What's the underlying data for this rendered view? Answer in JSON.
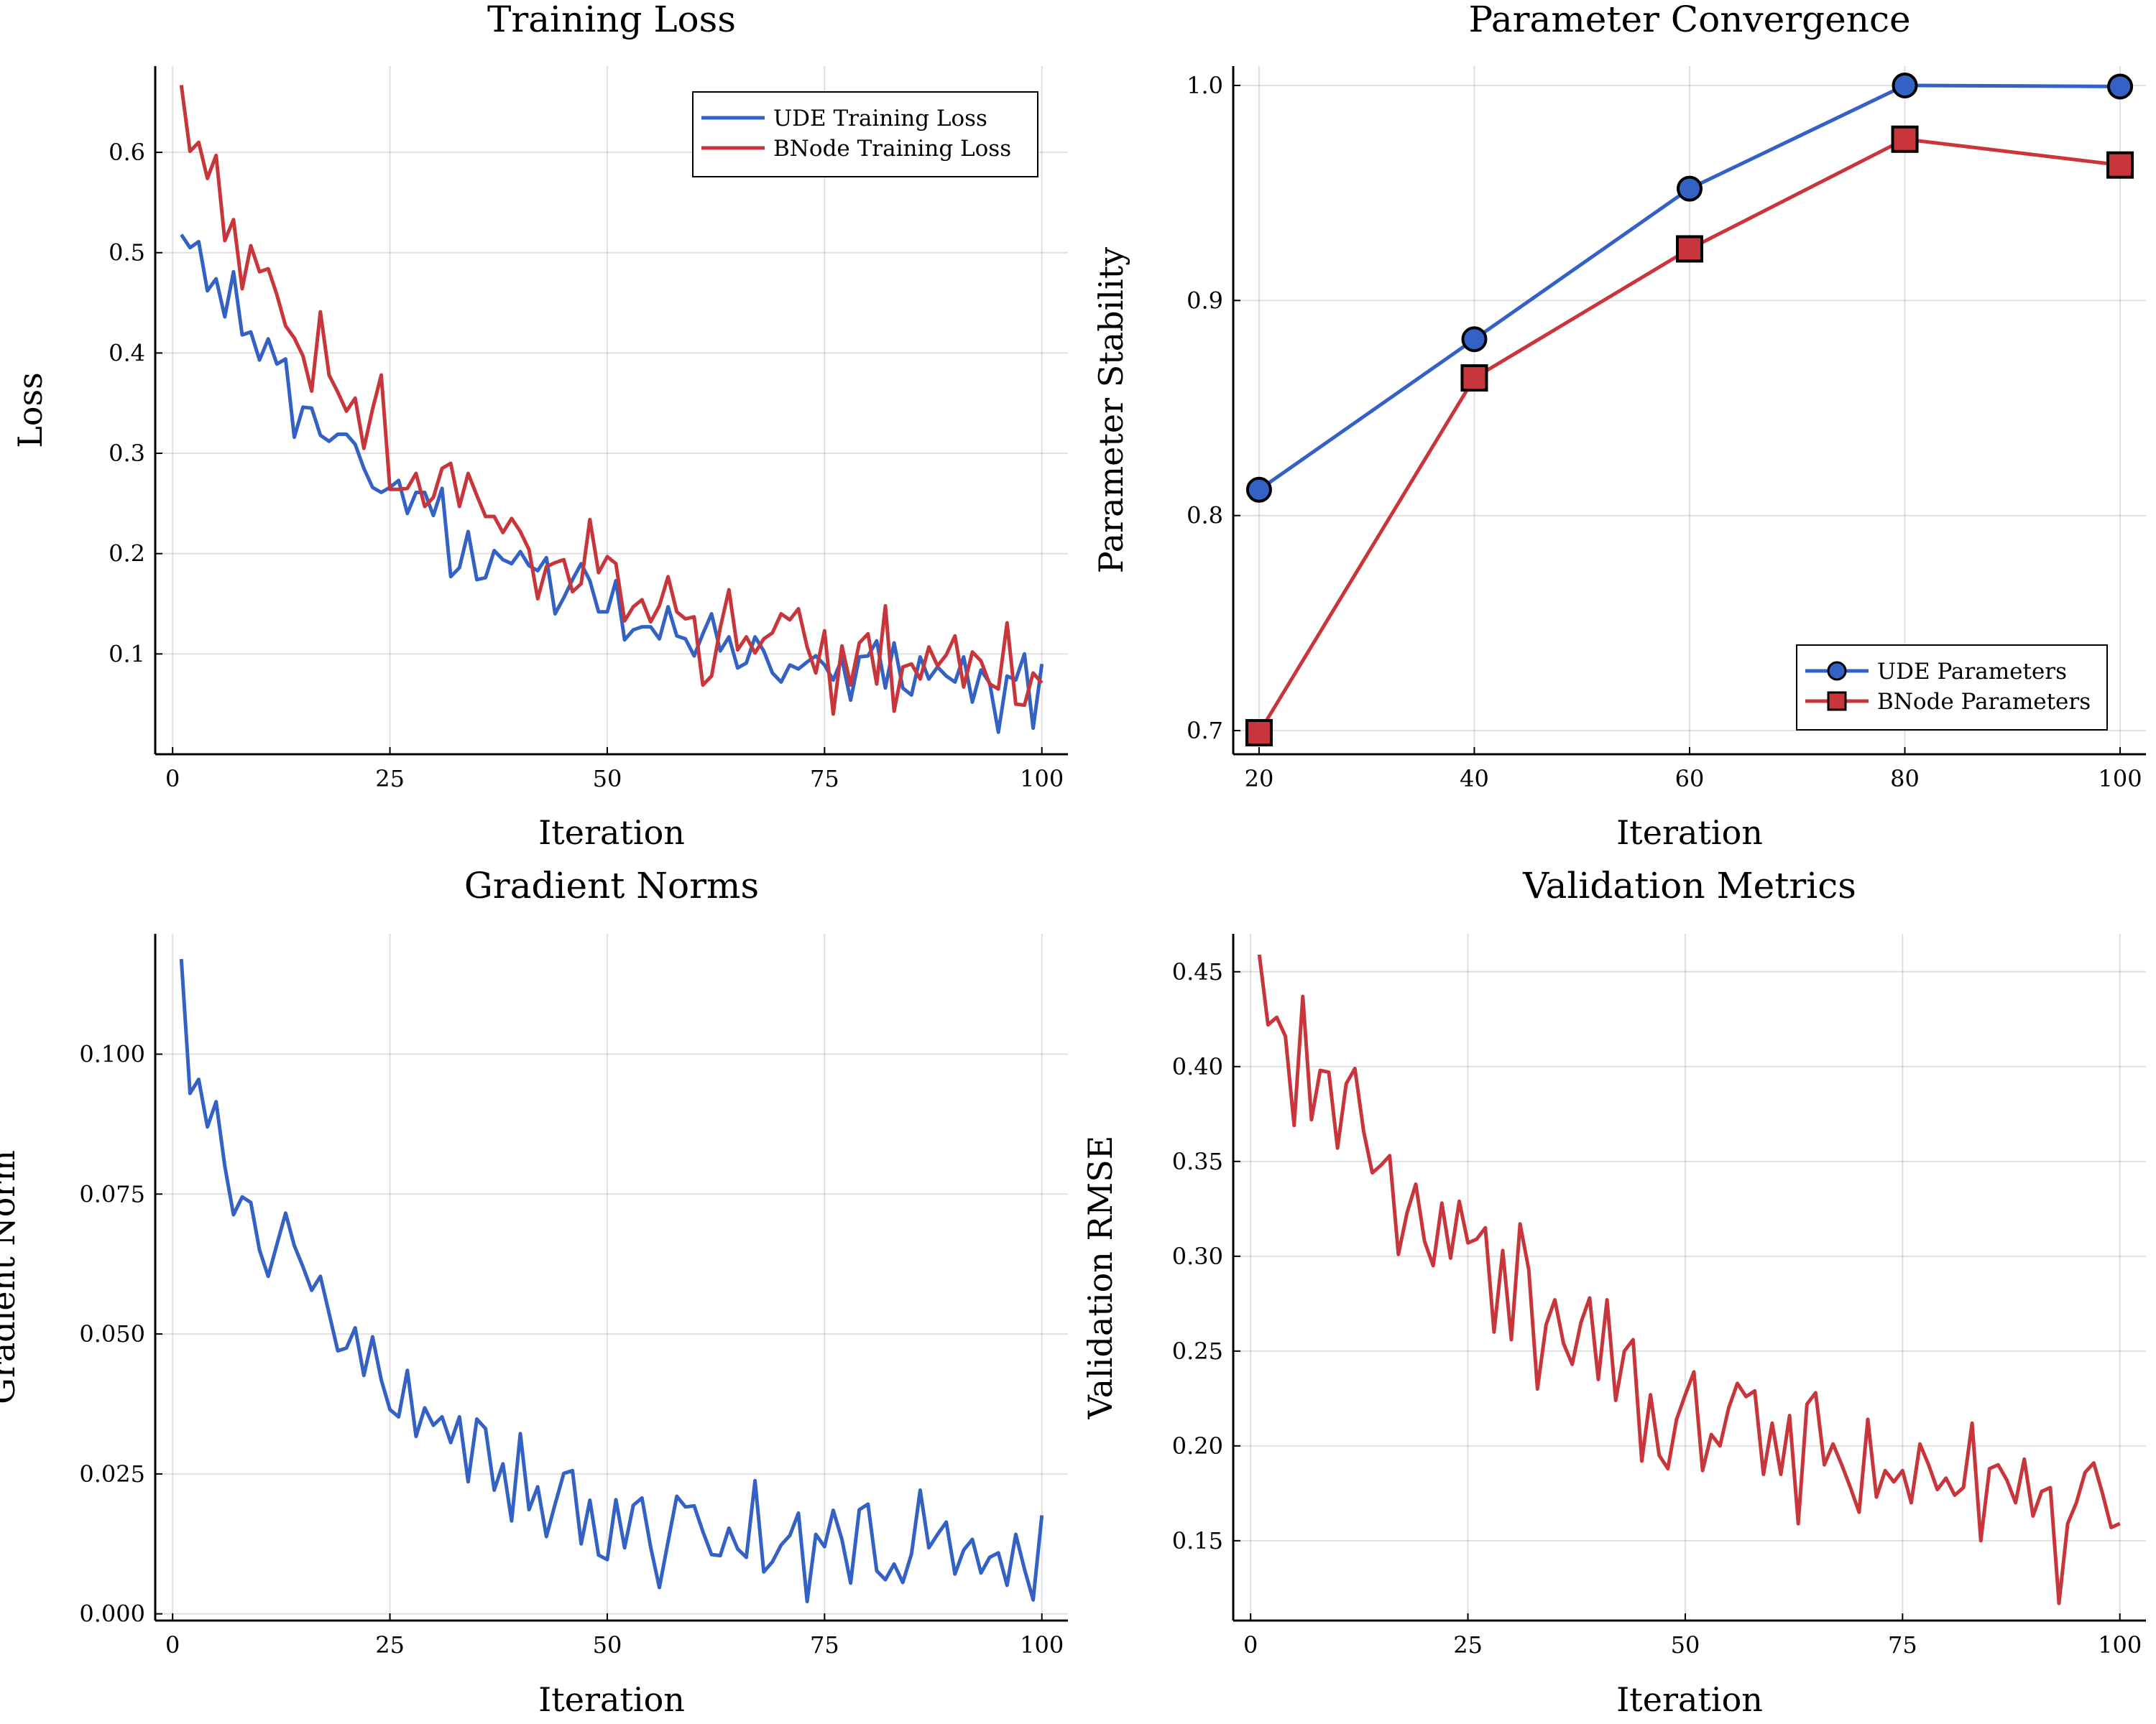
{
  "colors": {
    "blue": "#3361c4",
    "red": "#c8363b",
    "grid": "#dcdcdc",
    "axis": "#000000"
  },
  "chart_data": [
    {
      "id": "loss",
      "type": "line",
      "title": "Training Loss",
      "xlabel": "Iteration",
      "ylabel": "Loss",
      "xlim": [
        -2,
        103
      ],
      "ylim": [
        0.0,
        0.686
      ],
      "xticks": [
        0,
        25,
        50,
        75,
        100
      ],
      "xtick_labels": [
        "0",
        "25",
        "50",
        "75",
        "100"
      ],
      "yticks": [
        0.1,
        0.2,
        0.3,
        0.4,
        0.5,
        0.6
      ],
      "ytick_labels": [
        "0.1",
        "0.2",
        "0.3",
        "0.4",
        "0.5",
        "0.6"
      ],
      "grid": true,
      "legend": "top-right",
      "series": [
        {
          "name": "UDE Training Loss",
          "color": "#3361c4",
          "x": [
            1,
            2,
            3,
            4,
            5,
            6,
            7,
            8,
            9,
            10,
            11,
            12,
            13,
            14,
            15,
            16,
            17,
            18,
            19,
            20,
            21,
            22,
            23,
            24,
            25,
            26,
            27,
            28,
            29,
            30,
            31,
            32,
            33,
            34,
            35,
            36,
            37,
            38,
            39,
            40,
            41,
            42,
            43,
            44,
            45,
            46,
            47,
            48,
            49,
            50,
            51,
            52,
            53,
            54,
            55,
            56,
            57,
            58,
            59,
            60,
            61,
            62,
            63,
            64,
            65,
            66,
            67,
            68,
            69,
            70,
            71,
            72,
            73,
            74,
            75,
            76,
            77,
            78,
            79,
            80,
            81,
            82,
            83,
            84,
            85,
            86,
            87,
            88,
            89,
            90,
            91,
            92,
            93,
            94,
            95,
            96,
            97,
            98,
            99,
            100
          ],
          "y": [
            0.518,
            0.505,
            0.511,
            0.462,
            0.474,
            0.436,
            0.481,
            0.418,
            0.421,
            0.393,
            0.414,
            0.389,
            0.394,
            0.316,
            0.346,
            0.345,
            0.318,
            0.312,
            0.319,
            0.319,
            0.309,
            0.285,
            0.266,
            0.261,
            0.266,
            0.273,
            0.24,
            0.261,
            0.261,
            0.238,
            0.265,
            0.177,
            0.186,
            0.222,
            0.174,
            0.176,
            0.203,
            0.194,
            0.19,
            0.202,
            0.188,
            0.183,
            0.196,
            0.14,
            0.156,
            0.174,
            0.19,
            0.173,
            0.142,
            0.142,
            0.173,
            0.114,
            0.124,
            0.127,
            0.127,
            0.115,
            0.147,
            0.118,
            0.115,
            0.098,
            0.12,
            0.14,
            0.103,
            0.117,
            0.086,
            0.091,
            0.117,
            0.103,
            0.081,
            0.072,
            0.089,
            0.085,
            0.092,
            0.098,
            0.089,
            0.074,
            0.095,
            0.054,
            0.097,
            0.098,
            0.113,
            0.066,
            0.111,
            0.066,
            0.059,
            0.097,
            0.075,
            0.087,
            0.078,
            0.072,
            0.097,
            0.052,
            0.084,
            0.071,
            0.022,
            0.078,
            0.074,
            0.1,
            0.026,
            0.09
          ]
        },
        {
          "name": "BNode Training Loss",
          "color": "#c8363b",
          "x": [
            1,
            2,
            3,
            4,
            5,
            6,
            7,
            8,
            9,
            10,
            11,
            12,
            13,
            14,
            15,
            16,
            17,
            18,
            19,
            20,
            21,
            22,
            23,
            24,
            25,
            26,
            27,
            28,
            29,
            30,
            31,
            32,
            33,
            34,
            35,
            36,
            37,
            38,
            39,
            40,
            41,
            42,
            43,
            44,
            45,
            46,
            47,
            48,
            49,
            50,
            51,
            52,
            53,
            54,
            55,
            56,
            57,
            58,
            59,
            60,
            61,
            62,
            63,
            64,
            65,
            66,
            67,
            68,
            69,
            70,
            71,
            72,
            73,
            74,
            75,
            76,
            77,
            78,
            79,
            80,
            81,
            82,
            83,
            84,
            85,
            86,
            87,
            88,
            89,
            90,
            91,
            92,
            93,
            94,
            95,
            96,
            97,
            98,
            99,
            100
          ],
          "y": [
            0.667,
            0.601,
            0.61,
            0.574,
            0.597,
            0.512,
            0.533,
            0.464,
            0.507,
            0.481,
            0.484,
            0.458,
            0.427,
            0.415,
            0.397,
            0.362,
            0.441,
            0.378,
            0.361,
            0.342,
            0.355,
            0.305,
            0.344,
            0.378,
            0.264,
            0.264,
            0.265,
            0.28,
            0.247,
            0.256,
            0.285,
            0.29,
            0.247,
            0.28,
            0.258,
            0.237,
            0.237,
            0.221,
            0.235,
            0.222,
            0.204,
            0.155,
            0.187,
            0.191,
            0.194,
            0.162,
            0.17,
            0.234,
            0.181,
            0.197,
            0.19,
            0.133,
            0.147,
            0.154,
            0.132,
            0.148,
            0.177,
            0.142,
            0.135,
            0.137,
            0.069,
            0.078,
            0.126,
            0.164,
            0.104,
            0.117,
            0.101,
            0.115,
            0.121,
            0.14,
            0.134,
            0.145,
            0.107,
            0.081,
            0.123,
            0.04,
            0.108,
            0.069,
            0.111,
            0.12,
            0.07,
            0.148,
            0.043,
            0.087,
            0.09,
            0.075,
            0.107,
            0.088,
            0.099,
            0.118,
            0.067,
            0.102,
            0.093,
            0.07,
            0.065,
            0.131,
            0.05,
            0.049,
            0.081,
            0.071
          ]
        }
      ]
    },
    {
      "id": "param",
      "type": "line",
      "title": "Parameter Convergence",
      "xlabel": "Iteration",
      "ylabel": "Parameter Stability",
      "xlim": [
        17.6,
        102.4
      ],
      "ylim": [
        0.689,
        1.009
      ],
      "xticks": [
        20,
        40,
        60,
        80,
        100
      ],
      "xtick_labels": [
        "20",
        "40",
        "60",
        "80",
        "100"
      ],
      "yticks": [
        0.7,
        0.8,
        0.9,
        1.0
      ],
      "ytick_labels": [
        "0.7",
        "0.8",
        "0.9",
        "1.0"
      ],
      "grid": true,
      "legend": "bottom-right",
      "series": [
        {
          "name": "UDE Parameters",
          "color": "#3361c4",
          "marker": "circle",
          "x": [
            20,
            40,
            60,
            80,
            100
          ],
          "y": [
            0.812,
            0.882,
            0.952,
            1.0,
            0.9995
          ]
        },
        {
          "name": "BNode Parameters",
          "color": "#c8363b",
          "marker": "square",
          "x": [
            20,
            40,
            60,
            80,
            100
          ],
          "y": [
            0.699,
            0.864,
            0.924,
            0.975,
            0.963
          ]
        }
      ]
    },
    {
      "id": "grad",
      "type": "line",
      "title": "Gradient Norms",
      "xlabel": "Iteration",
      "ylabel": "Gradient Norm",
      "xlim": [
        -2,
        103
      ],
      "ylim": [
        -0.0012,
        0.1215
      ],
      "xticks": [
        0,
        25,
        50,
        75,
        100
      ],
      "xtick_labels": [
        "0",
        "25",
        "50",
        "75",
        "100"
      ],
      "yticks": [
        0.0,
        0.025,
        0.05,
        0.075,
        0.1
      ],
      "ytick_labels": [
        "0.000",
        "0.025",
        "0.050",
        "0.075",
        "0.100"
      ],
      "grid": true,
      "series": [
        {
          "color": "#3361c4",
          "x": [
            1,
            2,
            3,
            4,
            5,
            6,
            7,
            8,
            9,
            10,
            11,
            12,
            13,
            14,
            15,
            16,
            17,
            18,
            19,
            20,
            21,
            22,
            23,
            24,
            25,
            26,
            27,
            28,
            29,
            30,
            31,
            32,
            33,
            34,
            35,
            36,
            37,
            38,
            39,
            40,
            41,
            42,
            43,
            44,
            45,
            46,
            47,
            48,
            49,
            50,
            51,
            52,
            53,
            54,
            55,
            56,
            57,
            58,
            59,
            60,
            61,
            62,
            63,
            64,
            65,
            66,
            67,
            68,
            69,
            70,
            71,
            72,
            73,
            74,
            75,
            76,
            77,
            78,
            79,
            80,
            81,
            82,
            83,
            84,
            85,
            86,
            87,
            88,
            89,
            90,
            91,
            92,
            93,
            94,
            95,
            96,
            97,
            98,
            99,
            100
          ],
          "y": [
            0.117,
            0.093,
            0.0955,
            0.087,
            0.0915,
            0.08,
            0.0713,
            0.0745,
            0.0735,
            0.065,
            0.0603,
            0.066,
            0.0716,
            0.0658,
            0.062,
            0.0578,
            0.0603,
            0.0537,
            0.047,
            0.0475,
            0.0511,
            0.0426,
            0.0495,
            0.0418,
            0.0365,
            0.0352,
            0.0435,
            0.0317,
            0.0368,
            0.0337,
            0.0352,
            0.0306,
            0.0352,
            0.0236,
            0.0348,
            0.0331,
            0.0221,
            0.0268,
            0.0166,
            0.0322,
            0.0186,
            0.0227,
            0.0138,
            0.0196,
            0.0251,
            0.0256,
            0.0125,
            0.0203,
            0.0105,
            0.0097,
            0.0204,
            0.0118,
            0.0194,
            0.0207,
            0.0119,
            0.0047,
            0.0129,
            0.021,
            0.0191,
            0.0193,
            0.0147,
            0.0106,
            0.0104,
            0.0153,
            0.0116,
            0.0101,
            0.0238,
            0.0075,
            0.0093,
            0.0123,
            0.014,
            0.018,
            0.0022,
            0.0142,
            0.012,
            0.0185,
            0.0133,
            0.0055,
            0.0186,
            0.0196,
            0.0077,
            0.0061,
            0.0089,
            0.0056,
            0.0107,
            0.0221,
            0.0118,
            0.0142,
            0.0164,
            0.0071,
            0.0114,
            0.0133,
            0.0073,
            0.0101,
            0.0109,
            0.0051,
            0.0142,
            0.008,
            0.0025,
            0.0176
          ]
        }
      ]
    },
    {
      "id": "val",
      "type": "line",
      "title": "Validation Metrics",
      "xlabel": "Iteration",
      "ylabel": "Validation RMSE",
      "xlim": [
        -2,
        103
      ],
      "ylim": [
        0.1079,
        0.47
      ],
      "xticks": [
        0,
        25,
        50,
        75,
        100
      ],
      "xtick_labels": [
        "0",
        "25",
        "50",
        "75",
        "100"
      ],
      "yticks": [
        0.15,
        0.2,
        0.25,
        0.3,
        0.35,
        0.4,
        0.45
      ],
      "ytick_labels": [
        "0.15",
        "0.20",
        "0.25",
        "0.30",
        "0.35",
        "0.40",
        "0.45"
      ],
      "grid": true,
      "series": [
        {
          "color": "#c8363b",
          "x": [
            1,
            2,
            3,
            4,
            5,
            6,
            7,
            8,
            9,
            10,
            11,
            12,
            13,
            14,
            15,
            16,
            17,
            18,
            19,
            20,
            21,
            22,
            23,
            24,
            25,
            26,
            27,
            28,
            29,
            30,
            31,
            32,
            33,
            34,
            35,
            36,
            37,
            38,
            39,
            40,
            41,
            42,
            43,
            44,
            45,
            46,
            47,
            48,
            49,
            50,
            51,
            52,
            53,
            54,
            55,
            56,
            57,
            58,
            59,
            60,
            61,
            62,
            63,
            64,
            65,
            66,
            67,
            68,
            69,
            70,
            71,
            72,
            73,
            74,
            75,
            76,
            77,
            78,
            79,
            80,
            81,
            82,
            83,
            84,
            85,
            86,
            87,
            88,
            89,
            90,
            91,
            92,
            93,
            94,
            95,
            96,
            97,
            98,
            99,
            100
          ],
          "y": [
            0.459,
            0.422,
            0.426,
            0.416,
            0.369,
            0.437,
            0.372,
            0.398,
            0.397,
            0.357,
            0.391,
            0.399,
            0.366,
            0.344,
            0.348,
            0.353,
            0.301,
            0.323,
            0.338,
            0.308,
            0.295,
            0.328,
            0.299,
            0.329,
            0.307,
            0.309,
            0.315,
            0.26,
            0.303,
            0.256,
            0.317,
            0.293,
            0.23,
            0.264,
            0.277,
            0.254,
            0.243,
            0.265,
            0.278,
            0.235,
            0.277,
            0.224,
            0.25,
            0.256,
            0.192,
            0.227,
            0.195,
            0.188,
            0.214,
            0.227,
            0.239,
            0.187,
            0.206,
            0.2,
            0.22,
            0.233,
            0.226,
            0.229,
            0.185,
            0.212,
            0.185,
            0.216,
            0.159,
            0.222,
            0.228,
            0.19,
            0.201,
            0.19,
            0.178,
            0.165,
            0.214,
            0.173,
            0.187,
            0.181,
            0.187,
            0.17,
            0.201,
            0.19,
            0.177,
            0.183,
            0.174,
            0.178,
            0.212,
            0.15,
            0.188,
            0.19,
            0.182,
            0.17,
            0.193,
            0.163,
            0.176,
            0.178,
            0.117,
            0.159,
            0.17,
            0.186,
            0.191,
            0.175,
            0.157,
            0.159
          ]
        }
      ]
    }
  ]
}
